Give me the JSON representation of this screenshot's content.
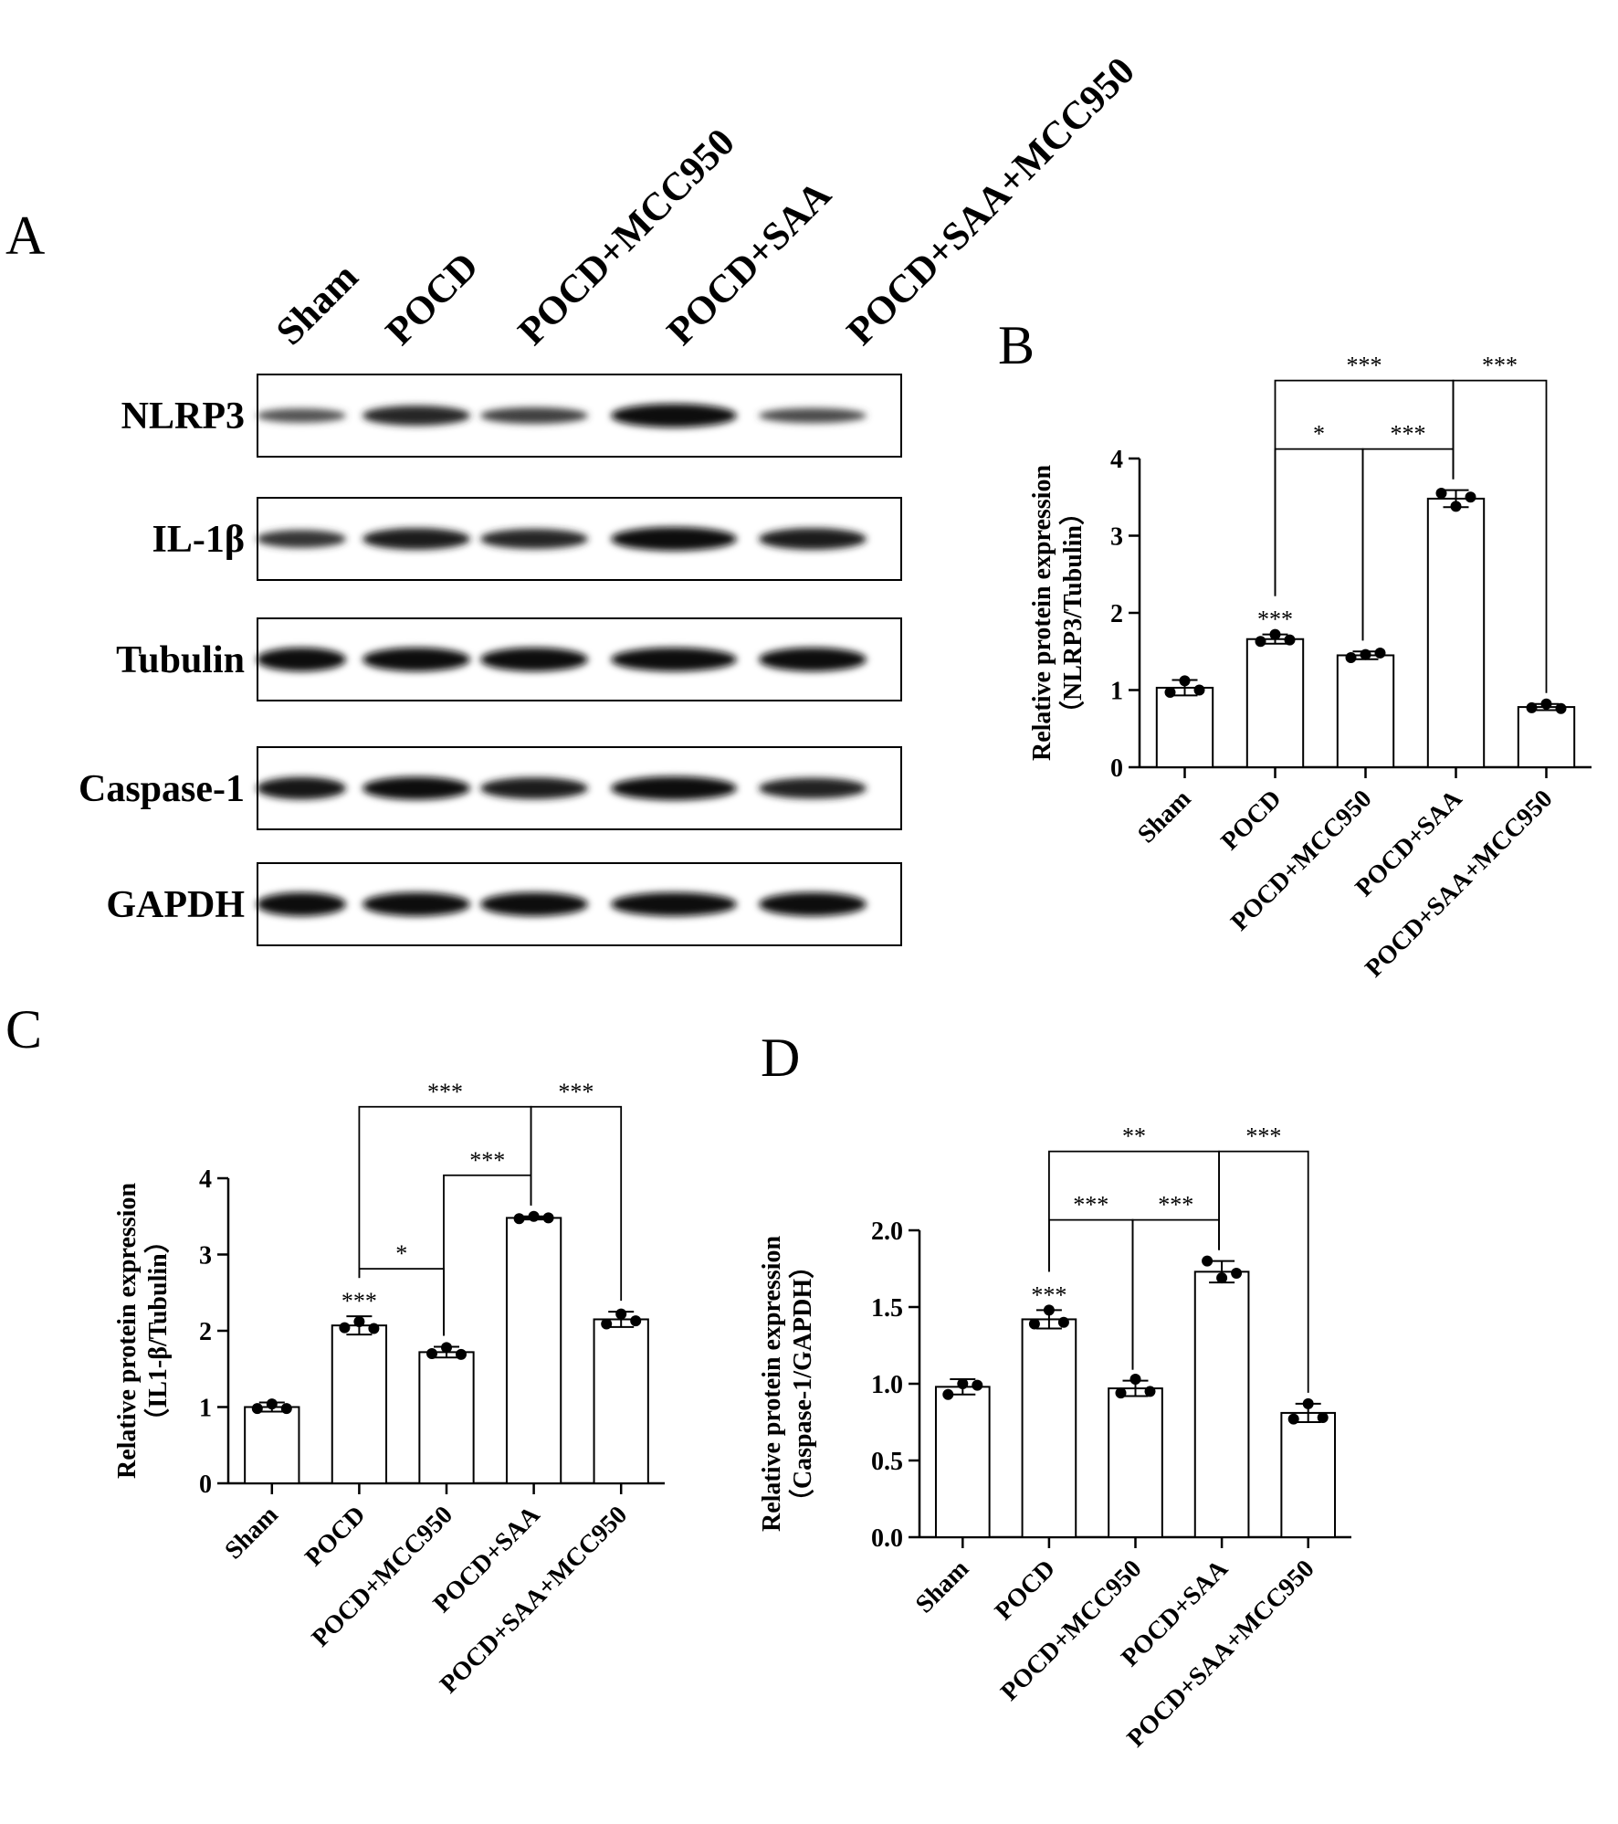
{
  "panels": {
    "A": "A",
    "B": "B",
    "C": "C",
    "D": "D"
  },
  "blot": {
    "lanes": [
      "Sham",
      "POCD",
      "POCD+MCC950",
      "POCD+SAA",
      "POCD+SAA+MCC950"
    ],
    "rows": [
      {
        "protein": "NLRP3",
        "intensity": [
          0.35,
          0.75,
          0.5,
          1.0,
          0.4
        ]
      },
      {
        "protein": "IL-1β",
        "intensity": [
          0.6,
          0.85,
          0.75,
          1.0,
          0.85
        ]
      },
      {
        "protein": "Tubulin",
        "intensity": [
          1.0,
          1.0,
          1.0,
          1.0,
          1.0
        ]
      },
      {
        "protein": "Caspase-1",
        "intensity": [
          0.9,
          0.95,
          0.85,
          1.0,
          0.8
        ]
      },
      {
        "protein": "GAPDH",
        "intensity": [
          1.0,
          1.0,
          1.0,
          1.0,
          1.0
        ]
      }
    ]
  },
  "chart_data": [
    {
      "panel": "B",
      "type": "bar",
      "ylabel_line1": "Relative protein expression",
      "ylabel_line2": "（NLRP3/Tubulin）",
      "categories": [
        "Sham",
        "POCD",
        "POCD+MCC950",
        "POCD+SAA",
        "POCD+SAA+MCC950"
      ],
      "values": [
        1.03,
        1.66,
        1.45,
        3.48,
        0.78
      ],
      "errors": [
        0.1,
        0.06,
        0.05,
        0.11,
        0.04
      ],
      "points": [
        [
          0.97,
          1.12,
          1.0
        ],
        [
          1.63,
          1.72,
          1.65
        ],
        [
          1.42,
          1.46,
          1.48
        ],
        [
          3.55,
          3.38,
          3.5
        ],
        [
          0.77,
          0.82,
          0.76
        ]
      ],
      "ylim": [
        0,
        4
      ],
      "yticks": [
        "0",
        "1",
        "2",
        "3",
        "4"
      ],
      "bar_annotations": [
        {
          "index": 1,
          "text": "***"
        }
      ],
      "brackets": [
        {
          "from": 1,
          "to": 2,
          "text": "*",
          "level": 1
        },
        {
          "from": 2,
          "to": 3,
          "text": "***",
          "level": 1
        },
        {
          "from": 1,
          "to": 3,
          "text": "***",
          "level": 2
        },
        {
          "from": 3,
          "to": 4,
          "text": "***",
          "level": 2
        }
      ]
    },
    {
      "panel": "C",
      "type": "bar",
      "ylabel_line1": "Relative protein expression",
      "ylabel_line2": "（IL1-β/Tubulin）",
      "categories": [
        "Sham",
        "POCD",
        "POCD+MCC950",
        "POCD+SAA",
        "POCD+SAA+MCC950"
      ],
      "values": [
        1.0,
        2.07,
        1.72,
        3.48,
        2.15
      ],
      "errors": [
        0.06,
        0.12,
        0.07,
        0.02,
        0.1
      ],
      "points": [
        [
          0.98,
          1.04,
          0.98
        ],
        [
          2.04,
          2.12,
          2.03
        ],
        [
          1.7,
          1.78,
          1.69
        ],
        [
          3.47,
          3.5,
          3.48
        ],
        [
          2.09,
          2.22,
          2.13
        ]
      ],
      "ylim": [
        0,
        4
      ],
      "yticks": [
        "0",
        "1",
        "2",
        "3",
        "4"
      ],
      "bar_annotations": [
        {
          "index": 1,
          "text": "***"
        }
      ],
      "brackets": [
        {
          "from": 1,
          "to": 2,
          "text": "*",
          "level": 0
        },
        {
          "from": 2,
          "to": 3,
          "text": "***",
          "level": 1
        },
        {
          "from": 1,
          "to": 3,
          "text": "***",
          "level": 2
        },
        {
          "from": 3,
          "to": 4,
          "text": "***",
          "level": 2
        }
      ]
    },
    {
      "panel": "D",
      "type": "bar",
      "ylabel_line1": "Relative protein expression",
      "ylabel_line2": "（Caspase-1/GAPDH）",
      "categories": [
        "Sham",
        "POCD",
        "POCD+MCC950",
        "POCD+SAA",
        "POCD+SAA+MCC950"
      ],
      "values": [
        0.98,
        1.42,
        0.97,
        1.73,
        0.81
      ],
      "errors": [
        0.05,
        0.06,
        0.05,
        0.07,
        0.06
      ],
      "points": [
        [
          0.93,
          1.0,
          0.99
        ],
        [
          1.39,
          1.48,
          1.4
        ],
        [
          0.94,
          1.03,
          0.95
        ],
        [
          1.8,
          1.69,
          1.72
        ],
        [
          0.77,
          0.87,
          0.78
        ]
      ],
      "ylim": [
        0,
        2.0
      ],
      "yticks": [
        "0.0",
        "0.5",
        "1.0",
        "1.5",
        "2.0"
      ],
      "bar_annotations": [
        {
          "index": 1,
          "text": "***"
        }
      ],
      "brackets": [
        {
          "from": 1,
          "to": 2,
          "text": "***",
          "level": 1
        },
        {
          "from": 2,
          "to": 3,
          "text": "***",
          "level": 1
        },
        {
          "from": 1,
          "to": 3,
          "text": "**",
          "level": 2
        },
        {
          "from": 3,
          "to": 4,
          "text": "***",
          "level": 2
        }
      ]
    }
  ]
}
